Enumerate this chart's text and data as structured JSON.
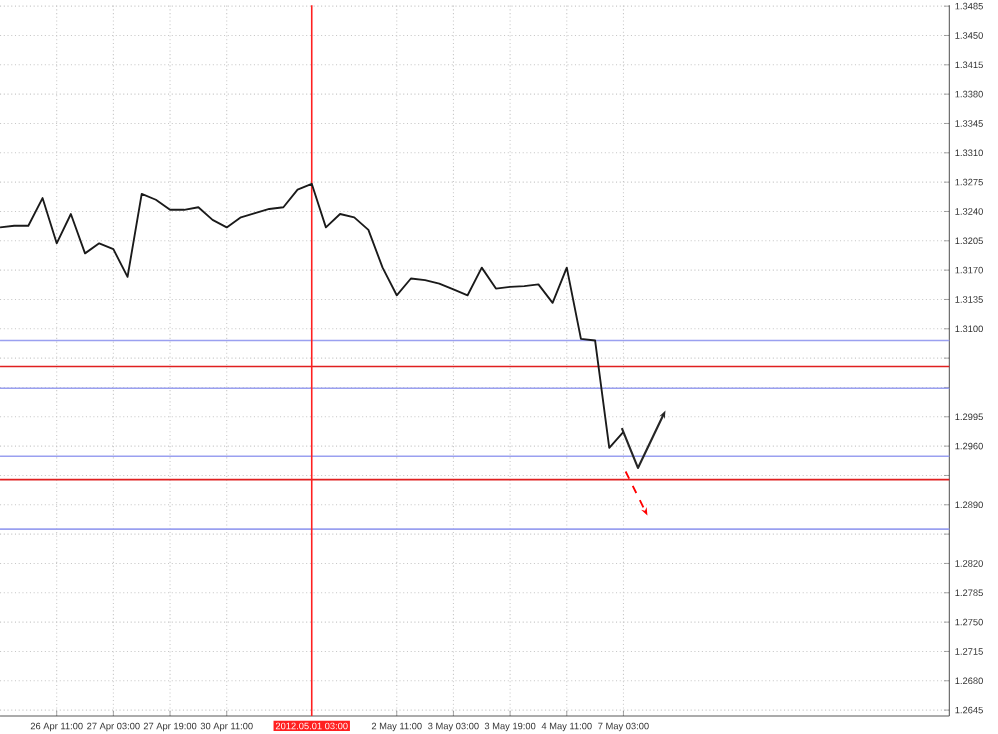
{
  "chart_data": {
    "type": "line",
    "categories": [
      null,
      null,
      null,
      null,
      "26 Apr 11:00",
      null,
      null,
      null,
      "27 Apr 03:00",
      null,
      null,
      null,
      "27 Apr 19:00",
      null,
      null,
      null,
      "30 Apr 11:00",
      null,
      null,
      null,
      null,
      null,
      "2012.05.01 03:00",
      null,
      null,
      null,
      null,
      null,
      "2 May 11:00",
      null,
      null,
      null,
      "3 May 03:00",
      null,
      null,
      null,
      "3 May 19:00",
      null,
      null,
      null,
      "4 May 11:00",
      null,
      null,
      null,
      "7 May 03:00",
      null,
      null,
      null,
      null,
      null,
      null,
      null,
      null,
      null,
      null,
      null,
      null,
      null,
      null,
      null,
      null,
      null,
      null,
      null,
      null,
      null,
      null,
      null
    ],
    "series": [
      {
        "color": "#1a1a1a",
        "values": [
          1.3221,
          1.3223,
          1.3223,
          1.3256,
          1.3202,
          1.3237,
          1.319,
          1.3202,
          1.3195,
          1.3162,
          1.3261,
          1.3254,
          1.3242,
          1.3242,
          1.3245,
          1.323,
          1.3221,
          1.3233,
          1.3238,
          1.3243,
          1.3245,
          1.3266,
          1.3273,
          1.3221,
          1.3237,
          1.3233,
          1.3218,
          1.3173,
          1.314,
          1.316,
          1.3158,
          1.3154,
          1.3147,
          1.314,
          1.3173,
          1.3148,
          1.315,
          1.3151,
          1.3153,
          1.3131,
          1.3173,
          1.3088,
          1.3086,
          1.2958,
          1.2977,
          null,
          null,
          null,
          null,
          null,
          null,
          null,
          null,
          null,
          null,
          null,
          null,
          null,
          null,
          null,
          null,
          null,
          null,
          null,
          null,
          null,
          null,
          null
        ]
      }
    ],
    "ylim": [
      1.2638,
      1.3486
    ],
    "yticks": [
      {
        "value": 1.3485,
        "label": "1.3485"
      },
      {
        "value": 1.345,
        "label": "1.3450"
      },
      {
        "value": 1.3415,
        "label": "1.3415"
      },
      {
        "value": 1.338,
        "label": "1.3380"
      },
      {
        "value": 1.3345,
        "label": "1.3345"
      },
      {
        "value": 1.331,
        "label": "1.3310"
      },
      {
        "value": 1.3275,
        "label": "1.3275"
      },
      {
        "value": 1.324,
        "label": "1.3240"
      },
      {
        "value": 1.3205,
        "label": "1.3205"
      },
      {
        "value": 1.317,
        "label": "1.3170"
      },
      {
        "value": 1.3135,
        "label": "1.3135"
      },
      {
        "value": 1.31,
        "label": "1.3100"
      },
      {
        "value": 1.3065,
        "label": null
      },
      {
        "value": 1.303,
        "label": null
      },
      {
        "value": 1.2995,
        "label": "1.2995"
      },
      {
        "value": 1.296,
        "label": "1.2960"
      },
      {
        "value": 1.2925,
        "label": null
      },
      {
        "value": 1.289,
        "label": "1.2890"
      },
      {
        "value": 1.2855,
        "label": null
      },
      {
        "value": 1.282,
        "label": "1.2820"
      },
      {
        "value": 1.2785,
        "label": "1.2785"
      },
      {
        "value": 1.275,
        "label": "1.2750"
      },
      {
        "value": 1.2715,
        "label": "1.2715"
      },
      {
        "value": 1.268,
        "label": "1.2680"
      },
      {
        "value": 1.2645,
        "label": "1.2645"
      }
    ],
    "ref_lines": [
      {
        "axis": "x",
        "value": "2012.05.01 03:00",
        "color": "#ff2020"
      },
      {
        "axis": "y",
        "value": 1.3086,
        "color": "#9aa0f0"
      },
      {
        "axis": "y",
        "value": 1.3055,
        "color": "#e02020"
      },
      {
        "axis": "y",
        "value": 1.3029,
        "color": "#9aa0f0"
      },
      {
        "axis": "y",
        "value": 1.2948,
        "color": "#9aa0f0"
      },
      {
        "axis": "y",
        "value": 1.292,
        "color": "#e02020"
      },
      {
        "axis": "y",
        "value": 1.2861,
        "color": "#9aa0f0"
      }
    ],
    "grid": true
  }
}
